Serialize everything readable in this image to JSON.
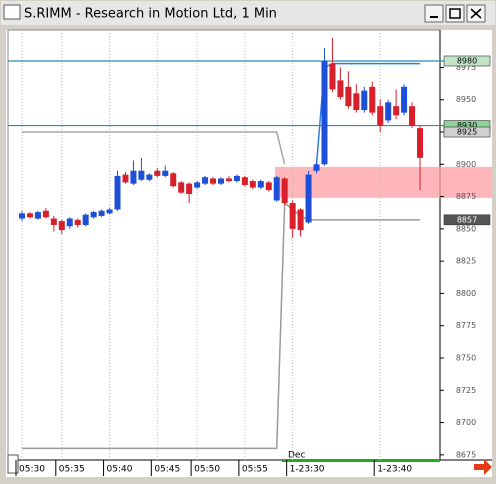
{
  "window": {
    "title": "S.RIMM - Research in Motion Ltd, 1 Min"
  },
  "chart_data": {
    "type": "candlestick",
    "date_label": "Dec",
    "categories": [
      "05:30",
      null,
      null,
      null,
      null,
      "05:35",
      null,
      null,
      null,
      null,
      null,
      "05:40",
      null,
      null,
      null,
      null,
      null,
      "05:45",
      null,
      null,
      null,
      null,
      "05:50",
      null,
      null,
      null,
      null,
      null,
      "05:55",
      null,
      null,
      null,
      null,
      null,
      "1-23:30",
      null,
      null,
      null,
      null,
      null,
      null,
      null,
      null,
      null,
      null,
      "1-23:40",
      null,
      null,
      null,
      null,
      null
    ],
    "open": [
      8858,
      8862,
      8858,
      8864,
      8858,
      8856,
      8852,
      8857,
      8853,
      8859,
      8860,
      8862,
      8865,
      8892,
      8885,
      8888,
      8888,
      8895,
      8891,
      8893,
      8886,
      8885,
      8882,
      8885,
      8889,
      8885,
      8889,
      8887,
      8890,
      8887,
      8882,
      8886,
      8872,
      8889,
      8870,
      8865,
      8855,
      8895,
      8900,
      8978,
      8965,
      8960,
      8955,
      8942,
      8960,
      8945,
      8934,
      8945,
      8940,
      8945,
      8928
    ],
    "high": [
      8864,
      8863,
      8864,
      8866,
      8860,
      8857,
      8859,
      8858,
      8862,
      8864,
      8865,
      8866,
      8895,
      8894,
      8903,
      8905,
      8893,
      8897,
      8899,
      8894,
      8887,
      8886,
      8887,
      8891,
      8890,
      8890,
      8891,
      8892,
      8891,
      8888,
      8888,
      8887,
      8891,
      8890,
      8872,
      8866,
      8895,
      8902,
      8990,
      8998,
      8975,
      8972,
      8962,
      8960,
      8964,
      8950,
      8950,
      8958,
      8962,
      8948,
      8930
    ],
    "low": [
      8856,
      8858,
      8857,
      8858,
      8848,
      8846,
      8850,
      8851,
      8852,
      8858,
      8859,
      8861,
      8864,
      8885,
      8884,
      8887,
      8887,
      8890,
      8890,
      8882,
      8877,
      8870,
      8881,
      8884,
      8884,
      8884,
      8886,
      8886,
      8883,
      8881,
      8881,
      8879,
      8871,
      8868,
      8843,
      8844,
      8854,
      8893,
      8899,
      8956,
      8950,
      8943,
      8940,
      8940,
      8938,
      8925,
      8932,
      8935,
      8938,
      8928,
      8880
    ],
    "close": [
      8862,
      8859,
      8863,
      8859,
      8853,
      8849,
      8858,
      8853,
      8861,
      8863,
      8864,
      8865,
      8891,
      8886,
      8895,
      8895,
      8892,
      8891,
      8895,
      8883,
      8878,
      8877,
      8886,
      8890,
      8885,
      8889,
      8887,
      8891,
      8884,
      8882,
      8887,
      8880,
      8890,
      8870,
      8850,
      8849,
      8892,
      8900,
      8980,
      8958,
      8952,
      8945,
      8942,
      8957,
      8940,
      8930,
      8948,
      8938,
      8960,
      8930,
      8905
    ],
    "up_color": "#1d4fd8",
    "down_color": "#d81f2a",
    "ylim": [
      8671,
      9004
    ],
    "yticks": [
      8675,
      8700,
      8725,
      8750,
      8775,
      8800,
      8825,
      8850,
      8875,
      8900,
      8925,
      8950,
      8975
    ],
    "grid": true,
    "levels": [
      8980,
      8930
    ],
    "level_color": "#2a8ab8",
    "band": [
      8874,
      8898
    ],
    "band_color": "#ff9ea4",
    "price_tags": [
      {
        "value": 8980,
        "label": "8980",
        "color": "#bfe3c4"
      },
      {
        "value": 8930,
        "label": "8930",
        "color": "#8fd39a"
      },
      {
        "value": 8925,
        "label": "8925",
        "color": "#d0d0d0"
      },
      {
        "value": 8857,
        "label": "8857",
        "color": "#555555"
      }
    ],
    "overlays": [
      {
        "color": "#a8a8a8",
        "values": [
          8925,
          8925,
          8925,
          8925,
          8925,
          8925,
          8925,
          8925,
          8925,
          8925,
          8925,
          8925,
          8925,
          8925,
          8925,
          8925,
          8925,
          8925,
          8925,
          8925,
          8925,
          8925,
          8925,
          8925,
          8925,
          8925,
          8925,
          8925,
          8925,
          8925,
          8925,
          8925,
          8925,
          8900,
          null,
          null,
          null,
          null,
          null,
          null,
          null,
          null,
          null,
          null,
          null,
          null,
          null,
          null,
          null,
          null,
          null
        ]
      },
      {
        "color": "#9a9a9a",
        "values": [
          8680,
          8680,
          8680,
          8680,
          8680,
          8680,
          8680,
          8680,
          8680,
          8680,
          8680,
          8680,
          8680,
          8680,
          8680,
          8680,
          8680,
          8680,
          8680,
          8680,
          8680,
          8680,
          8680,
          8680,
          8680,
          8680,
          8680,
          8680,
          8680,
          8680,
          8680,
          8680,
          8680,
          8870,
          8865,
          8860,
          8857,
          8857,
          8857,
          8857,
          8857,
          8857,
          8857,
          8857,
          8857,
          8857,
          8857,
          8857,
          8857,
          8857,
          8857
        ]
      },
      {
        "color": "#2f7de0",
        "values": [
          null,
          null,
          null,
          null,
          null,
          null,
          null,
          null,
          null,
          null,
          null,
          null,
          null,
          null,
          null,
          null,
          null,
          null,
          null,
          null,
          null,
          null,
          null,
          null,
          null,
          null,
          null,
          null,
          null,
          null,
          null,
          null,
          null,
          null,
          null,
          null,
          null,
          8900,
          8975,
          8978,
          8978,
          8978,
          8978,
          8978,
          8978,
          8978,
          8978,
          8978,
          8978,
          8978,
          8978
        ]
      }
    ]
  }
}
